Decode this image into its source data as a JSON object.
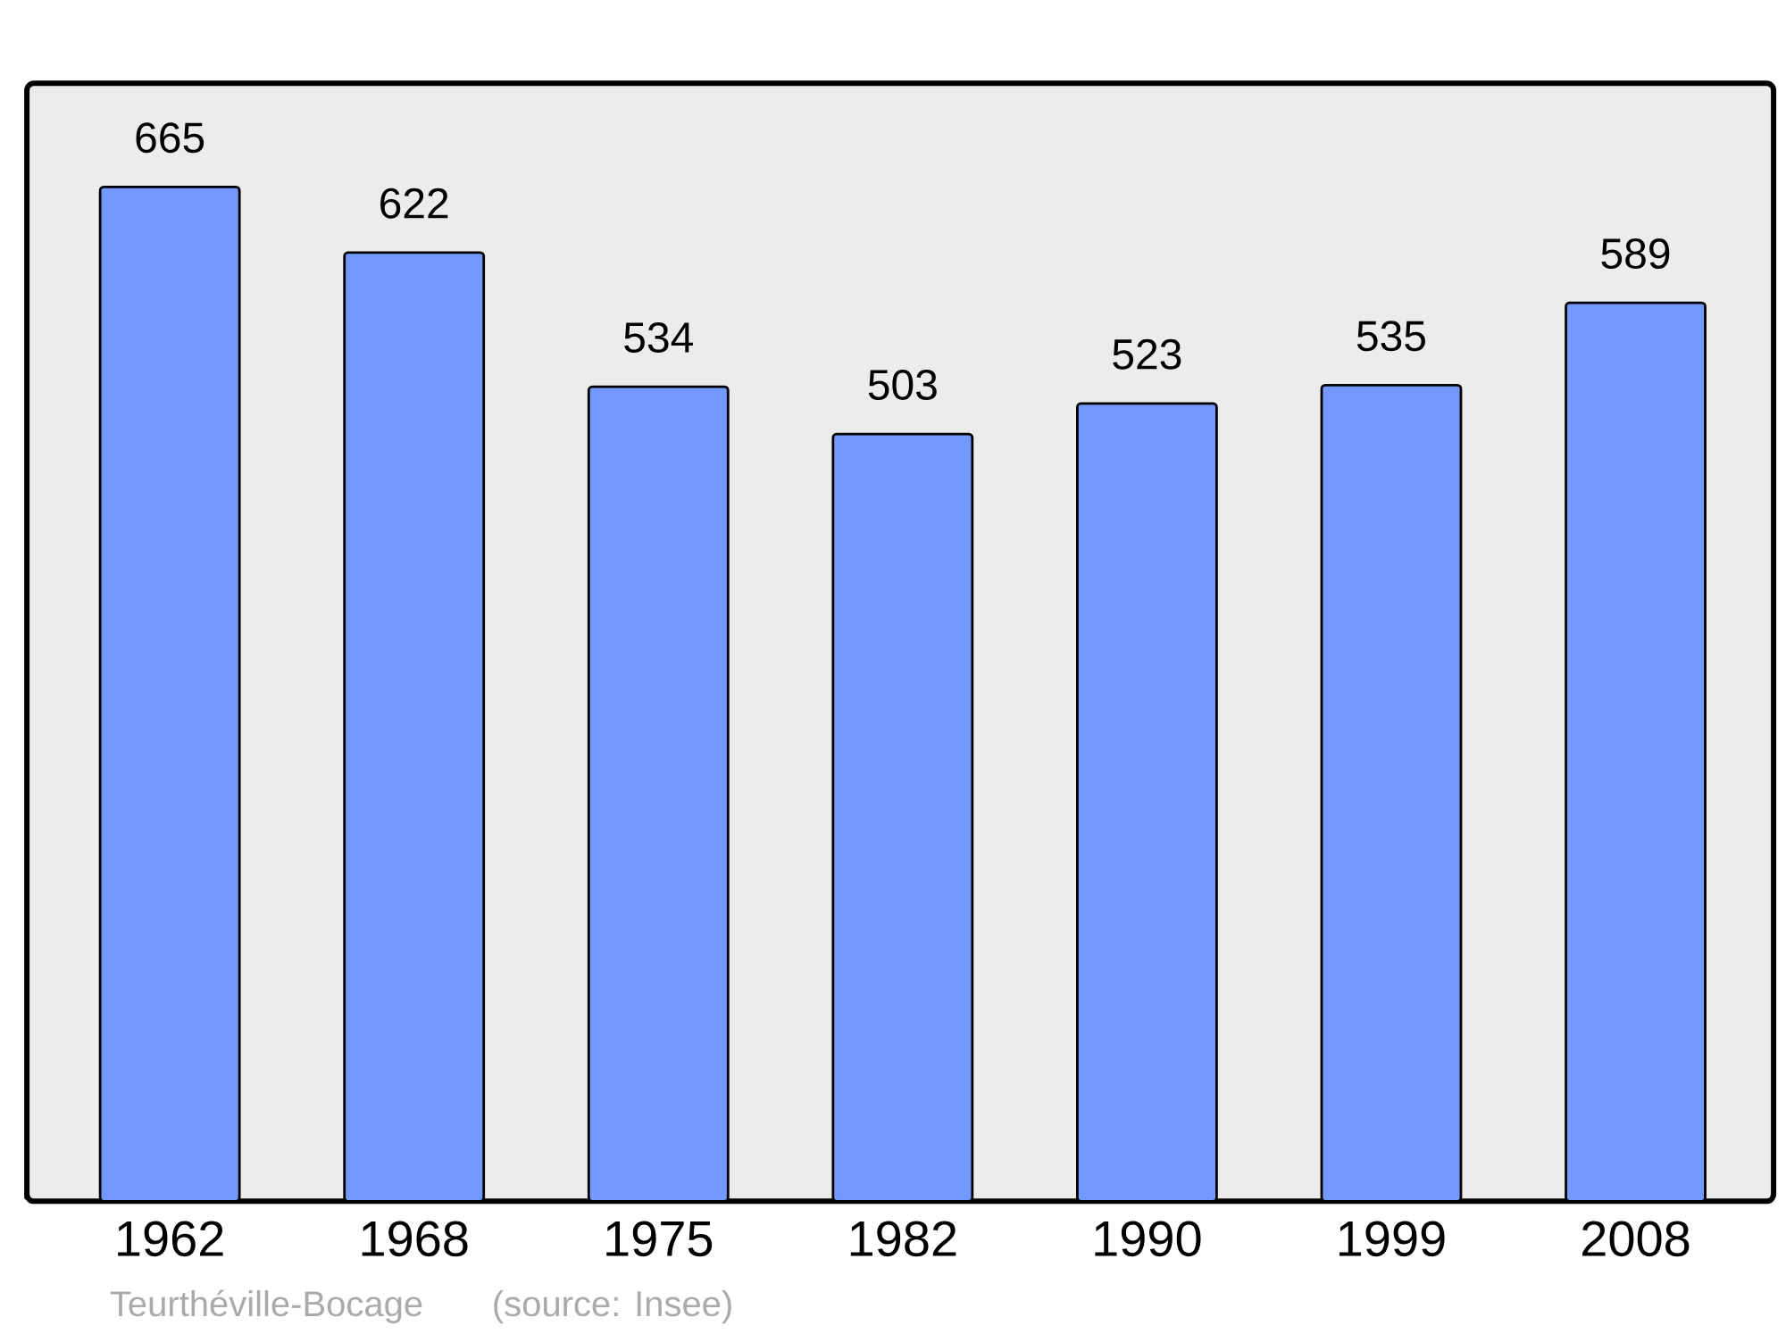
{
  "chart_data": {
    "type": "bar",
    "categories": [
      "1962",
      "1968",
      "1975",
      "1982",
      "1990",
      "1999",
      "2008"
    ],
    "values": [
      665,
      622,
      534,
      503,
      523,
      535,
      589
    ],
    "color": "#7399ff",
    "data_labels": true,
    "annotations": [
      "Teurthéville-Bocage",
      "(source: Insee)"
    ]
  }
}
